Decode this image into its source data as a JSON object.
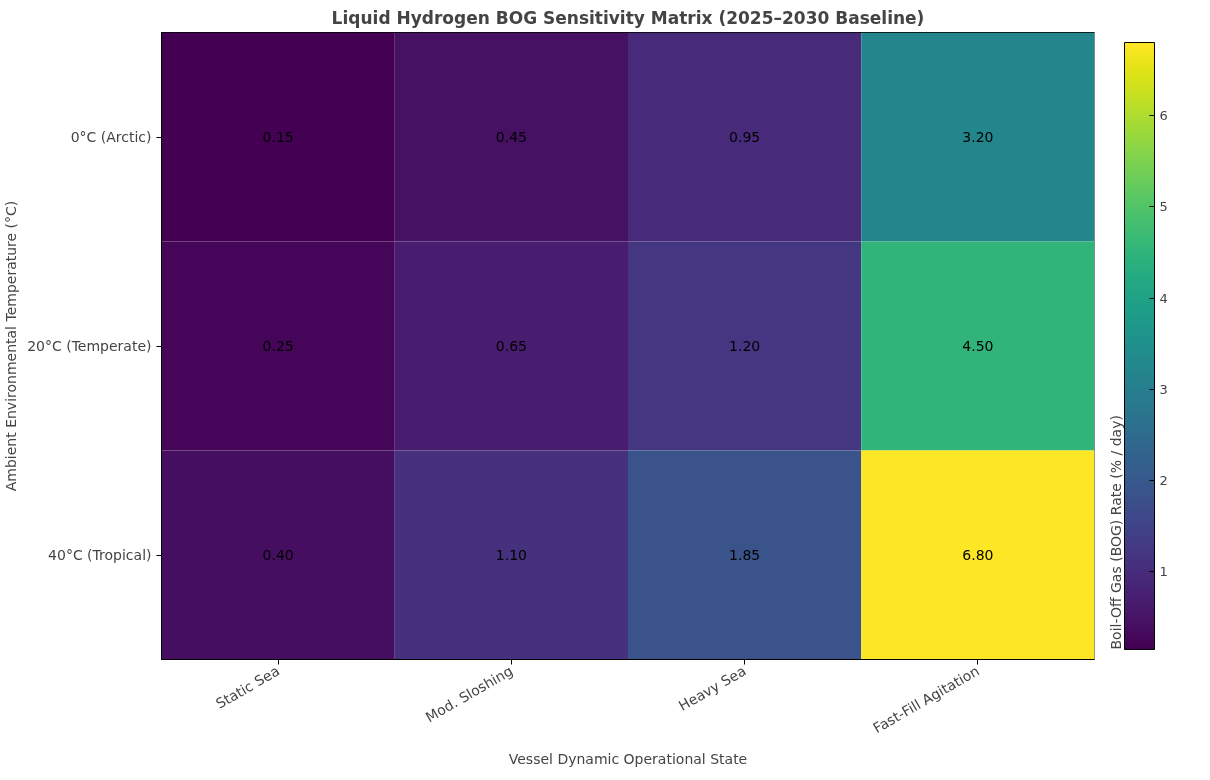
{
  "chart_data": {
    "type": "heatmap",
    "title": "Liquid Hydrogen BOG Sensitivity Matrix (2025–2030 Baseline)",
    "xlabel": "Vessel Dynamic Operational State",
    "ylabel": "Ambient Environmental Temperature (°C)",
    "clabel": "Boil-Off Gas (BOG) Rate (% / day)",
    "categories": [
      "Static Sea",
      "Mod. Sloshing",
      "Heavy Sea",
      "Fast-Fill Agitation"
    ],
    "y_categories": [
      "0°C (Arctic)",
      "20°C (Temperate)",
      "40°C (Tropical)"
    ],
    "cells": [
      [
        0.15,
        0.45,
        0.95,
        3.2
      ],
      [
        0.25,
        0.65,
        1.2,
        4.5
      ],
      [
        0.4,
        1.1,
        1.85,
        6.8
      ]
    ],
    "cell_labels": [
      [
        "0.15",
        "0.45",
        "0.95",
        "3.20"
      ],
      [
        "0.25",
        "0.65",
        "1.20",
        "4.50"
      ],
      [
        "0.40",
        "1.10",
        "1.85",
        "6.80"
      ]
    ],
    "clim": [
      0.15,
      6.8
    ],
    "cticks": [
      1,
      2,
      3,
      4,
      5,
      6
    ]
  }
}
